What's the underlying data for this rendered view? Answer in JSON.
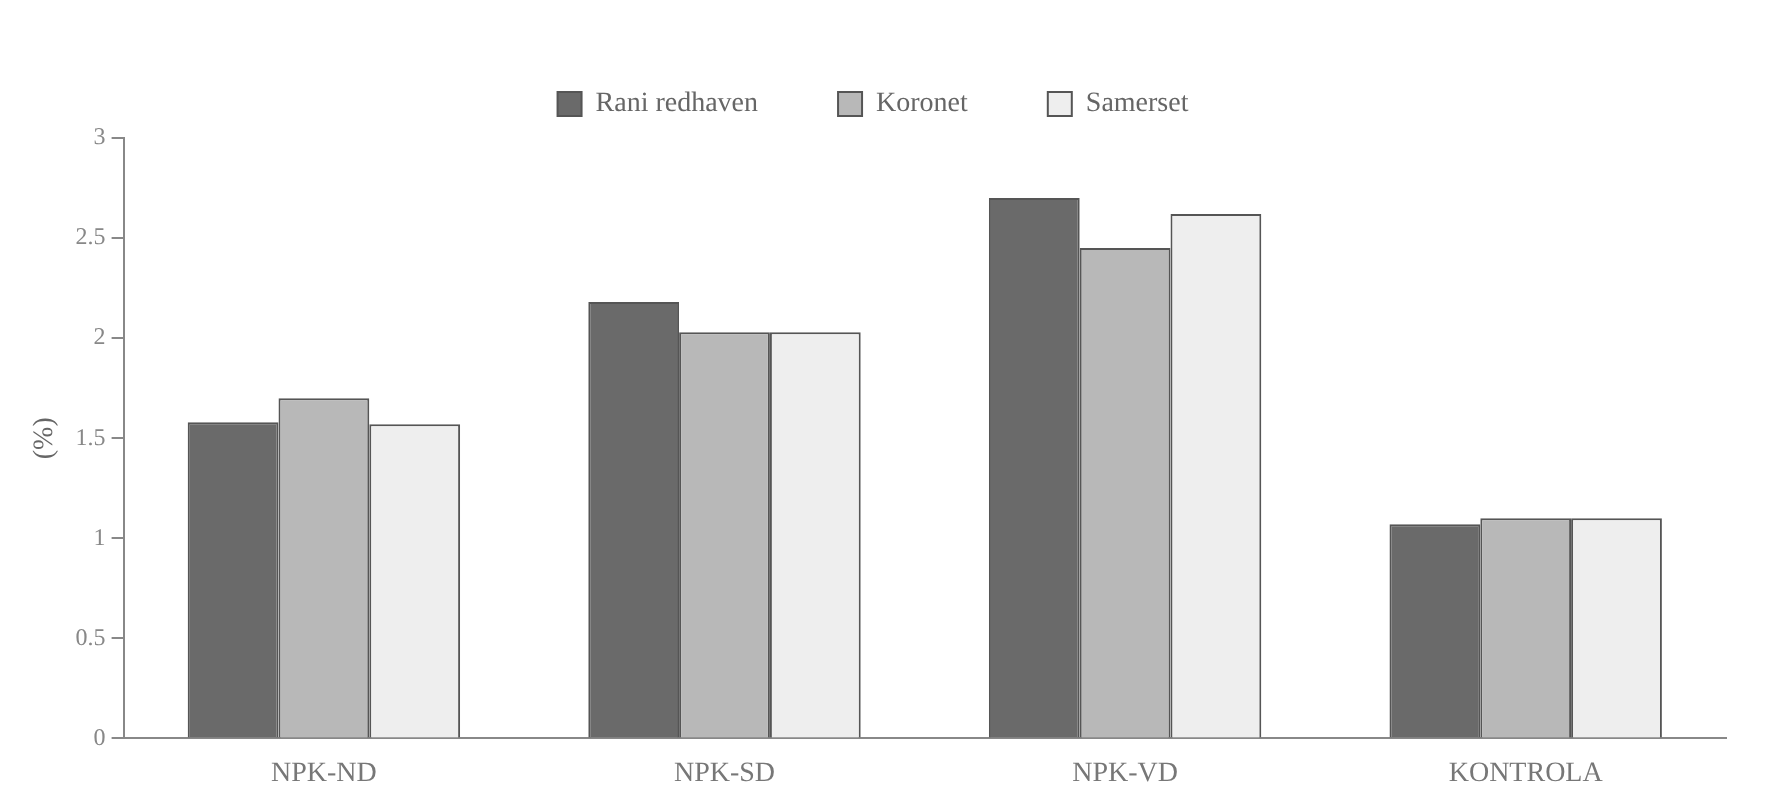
{
  "chart_data": {
    "type": "bar",
    "ylabel": "(%)",
    "categories": [
      "NPK-ND",
      "NPK-SD",
      "NPK-VD",
      "KONTROLA"
    ],
    "series": [
      {
        "name": "Rani redhaven",
        "color": "#6a6a6a",
        "values": [
          1.58,
          2.18,
          2.7,
          1.07
        ]
      },
      {
        "name": "Koronet",
        "color": "#b8b8b8",
        "values": [
          1.7,
          2.03,
          2.45,
          1.1
        ]
      },
      {
        "name": "Samerset",
        "color": "#eeeeee",
        "values": [
          1.57,
          2.03,
          2.62,
          1.1
        ]
      }
    ],
    "ylim": [
      0,
      3
    ],
    "yticks": [
      0,
      0.5,
      1,
      1.5,
      2,
      2.5,
      3
    ],
    "grid": false,
    "legend": "top"
  }
}
